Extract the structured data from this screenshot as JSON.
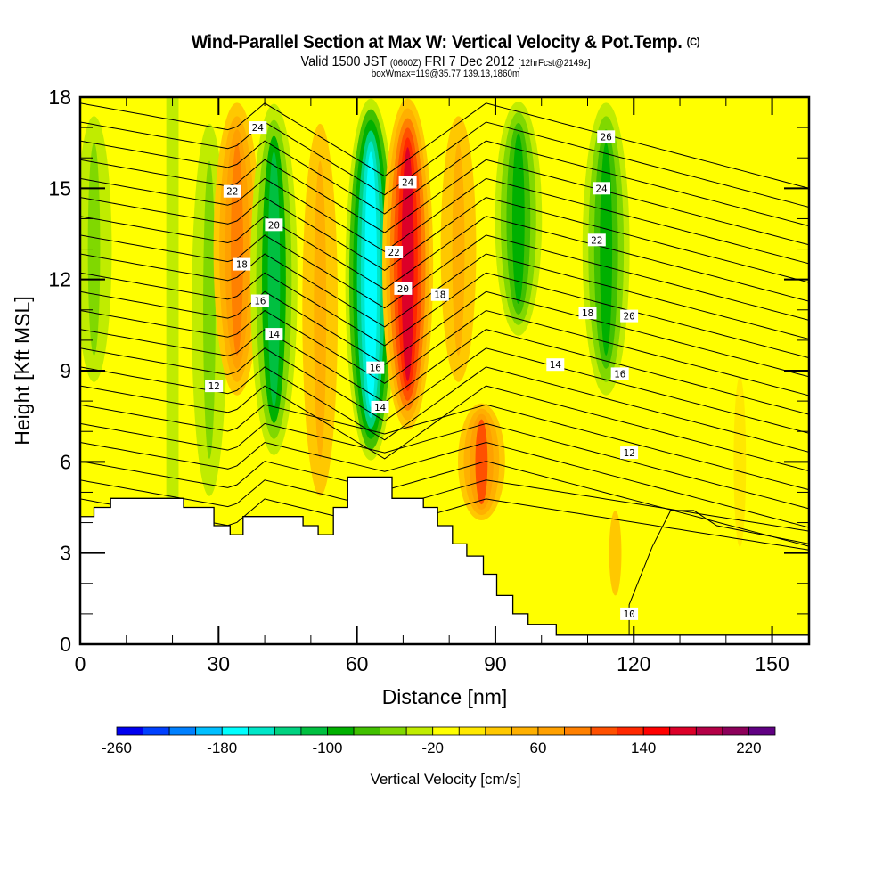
{
  "header": {
    "title": "Wind-Parallel Section at Max W: Vertical Velocity & Pot.Temp.",
    "title_mark": "(C)",
    "subtitle_prefix": "Valid 1500 JST",
    "subtitle_zulu": "(0600Z)",
    "subtitle_date": "FRI 7 Dec 2012",
    "subtitle_fcst": "[12hrFcst@2149z]",
    "subtitle2": "boxWmax=119@35.77,139.13,1860m"
  },
  "chart_data": {
    "type": "heatmap",
    "title": "Wind-Parallel Section at Max W: Vertical Velocity & Pot.Temp.",
    "xlabel": "Distance [nm]",
    "ylabel": "Height [Kft MSL]",
    "xlim": [
      0,
      158
    ],
    "ylim": [
      0,
      18
    ],
    "xticks": [
      0,
      30,
      60,
      90,
      120,
      150
    ],
    "yticks": [
      0,
      3,
      6,
      9,
      12,
      15,
      18
    ],
    "grid": false,
    "colorbar": {
      "label": "Vertical Velocity [cm/s]",
      "placement": "bottom",
      "levels": [
        -260,
        -240,
        -220,
        -200,
        -180,
        -160,
        -140,
        -120,
        -100,
        -80,
        -60,
        -40,
        -20,
        0,
        20,
        40,
        60,
        80,
        100,
        120,
        140,
        160,
        180,
        200,
        220,
        240
      ],
      "tick_labels": [
        "-260",
        "-180",
        "-100",
        "-20",
        "60",
        "140",
        "220"
      ],
      "colors": [
        "#0000f0",
        "#0040ff",
        "#0080ff",
        "#00bfff",
        "#00ffff",
        "#00e6c8",
        "#00d280",
        "#00c040",
        "#00b000",
        "#40c000",
        "#80d800",
        "#c0ec00",
        "#ffff00",
        "#ffe800",
        "#ffc800",
        "#ffb000",
        "#ffa000",
        "#ff8000",
        "#ff5000",
        "#ff2800",
        "#ff0000",
        "#dc0028",
        "#b40046",
        "#8c005a",
        "#600082"
      ]
    },
    "velocity_bands": [
      {
        "x_nm": 3,
        "w_cm_s": -60,
        "z_range_kft": [
          8,
          18
        ]
      },
      {
        "x_nm": 20,
        "w_cm_s": -25,
        "z_range_kft": [
          0,
          18
        ]
      },
      {
        "x_nm": 28,
        "w_cm_s": -50,
        "z_range_kft": [
          4,
          18
        ]
      },
      {
        "x_nm": 34,
        "w_cm_s": 90,
        "z_range_kft": [
          8,
          18
        ]
      },
      {
        "x_nm": 42,
        "w_cm_s": -110,
        "z_range_kft": [
          6,
          18
        ]
      },
      {
        "x_nm": 52,
        "w_cm_s": 40,
        "z_range_kft": [
          4,
          18
        ]
      },
      {
        "x_nm": 63,
        "w_cm_s": -180,
        "z_range_kft": [
          6,
          18
        ]
      },
      {
        "x_nm": 71,
        "w_cm_s": 160,
        "z_range_kft": [
          7,
          18
        ]
      },
      {
        "x_nm": 82,
        "w_cm_s": 40,
        "z_range_kft": [
          8,
          18
        ]
      },
      {
        "x_nm": 87,
        "w_cm_s": 100,
        "z_range_kft": [
          4,
          8
        ]
      },
      {
        "x_nm": 95,
        "w_cm_s": -90,
        "z_range_kft": [
          10,
          18
        ]
      },
      {
        "x_nm": 114,
        "w_cm_s": -100,
        "z_range_kft": [
          8,
          18
        ]
      },
      {
        "x_nm": 116,
        "w_cm_s": 25,
        "z_range_kft": [
          1,
          5
        ]
      },
      {
        "x_nm": 143,
        "w_cm_s": 15,
        "z_range_kft": [
          2,
          10
        ]
      }
    ],
    "theta_contours": {
      "name": "Pot.Temp.",
      "labels": [
        {
          "value": "24",
          "x_nm": 38.5,
          "z_kft": 17.0
        },
        {
          "value": "22",
          "x_nm": 33,
          "z_kft": 14.9
        },
        {
          "value": "20",
          "x_nm": 42,
          "z_kft": 13.8
        },
        {
          "value": "18",
          "x_nm": 35,
          "z_kft": 12.5
        },
        {
          "value": "16",
          "x_nm": 39,
          "z_kft": 11.3
        },
        {
          "value": "14",
          "x_nm": 42,
          "z_kft": 10.2
        },
        {
          "value": "12",
          "x_nm": 29,
          "z_kft": 8.5
        },
        {
          "value": "24",
          "x_nm": 71,
          "z_kft": 15.2
        },
        {
          "value": "22",
          "x_nm": 68,
          "z_kft": 12.9
        },
        {
          "value": "20",
          "x_nm": 70,
          "z_kft": 11.7
        },
        {
          "value": "18",
          "x_nm": 78,
          "z_kft": 11.5
        },
        {
          "value": "16",
          "x_nm": 64,
          "z_kft": 9.1
        },
        {
          "value": "14",
          "x_nm": 65,
          "z_kft": 7.8
        },
        {
          "value": "26",
          "x_nm": 114,
          "z_kft": 16.7
        },
        {
          "value": "24",
          "x_nm": 113,
          "z_kft": 15.0
        },
        {
          "value": "22",
          "x_nm": 112,
          "z_kft": 13.3
        },
        {
          "value": "18",
          "x_nm": 110,
          "z_kft": 10.9
        },
        {
          "value": "20",
          "x_nm": 119,
          "z_kft": 10.8
        },
        {
          "value": "14",
          "x_nm": 103,
          "z_kft": 9.2
        },
        {
          "value": "16",
          "x_nm": 117,
          "z_kft": 8.9
        },
        {
          "value": "12",
          "x_nm": 119,
          "z_kft": 6.3
        },
        {
          "value": "10",
          "x_nm": 119,
          "z_kft": 1.0
        }
      ]
    },
    "terrain_kft": [
      {
        "x_nm": 0,
        "z": 4.2
      },
      {
        "x_nm": 3,
        "z": 4.5
      },
      {
        "x_nm": 6.6,
        "z": 4.8
      },
      {
        "x_nm": 22.4,
        "z": 4.5
      },
      {
        "x_nm": 29,
        "z": 3.9
      },
      {
        "x_nm": 32.5,
        "z": 3.6
      },
      {
        "x_nm": 35.3,
        "z": 4.2
      },
      {
        "x_nm": 48.3,
        "z": 3.9
      },
      {
        "x_nm": 51.6,
        "z": 3.6
      },
      {
        "x_nm": 54.9,
        "z": 4.5
      },
      {
        "x_nm": 58,
        "z": 5.5
      },
      {
        "x_nm": 67.6,
        "z": 4.8
      },
      {
        "x_nm": 74.4,
        "z": 4.5
      },
      {
        "x_nm": 77.5,
        "z": 3.9
      },
      {
        "x_nm": 80.7,
        "z": 3.3
      },
      {
        "x_nm": 83.8,
        "z": 2.9
      },
      {
        "x_nm": 87.4,
        "z": 2.3
      },
      {
        "x_nm": 90.3,
        "z": 1.6
      },
      {
        "x_nm": 93.8,
        "z": 1.0
      },
      {
        "x_nm": 97.1,
        "z": 0.65
      },
      {
        "x_nm": 103.2,
        "z": 0.3
      },
      {
        "x_nm": 158,
        "z": 0.3
      }
    ]
  }
}
